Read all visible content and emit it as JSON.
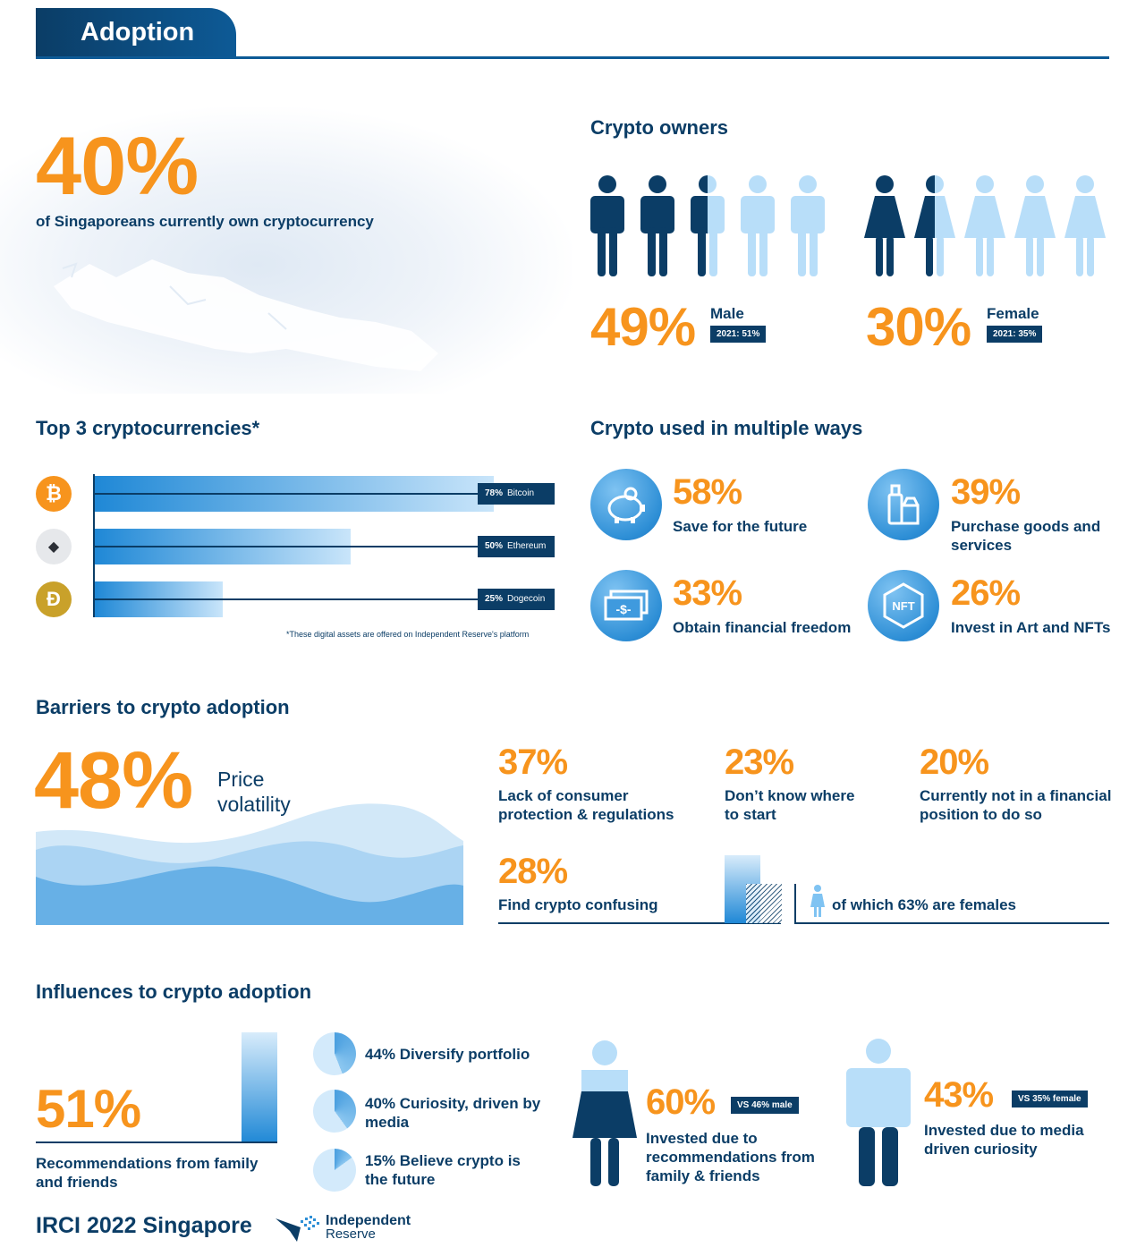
{
  "header": {
    "title": "Adoption"
  },
  "colors": {
    "navy": "#0b3d66",
    "orange": "#f7941d",
    "light_blue": "#b8def9",
    "blue": "#2e8fd6"
  },
  "ownership": {
    "percent": "40%",
    "description": "of Singaporeans currently own cryptocurrency"
  },
  "crypto_owners": {
    "title": "Crypto owners",
    "male": {
      "percent": "49%",
      "label": "Male",
      "tag": "2021: 51%",
      "filled_fraction": 0.49
    },
    "female": {
      "percent": "30%",
      "label": "Female",
      "tag": "2021: 35%",
      "filled_fraction": 0.3
    }
  },
  "top_crypto": {
    "title": "Top 3 cryptocurrencies*",
    "footnote": "*These digital assets are offered on Independent Reserve's platform",
    "items": [
      {
        "pct": "78%",
        "name": "Bitcoin",
        "value": 78,
        "icon": "bitcoin-icon",
        "symbol": "₿"
      },
      {
        "pct": "50%",
        "name": "Ethereum",
        "value": 50,
        "icon": "ethereum-icon",
        "symbol": "◆"
      },
      {
        "pct": "25%",
        "name": "Dogecoin",
        "value": 25,
        "icon": "dogecoin-icon",
        "symbol": "Ð"
      }
    ]
  },
  "uses": {
    "title": "Crypto used in multiple ways",
    "items": [
      {
        "pct": "58%",
        "label": "Save for the future",
        "icon": "piggy-bank-icon"
      },
      {
        "pct": "39%",
        "label": "Purchase goods and services",
        "icon": "shopping-bottles-icon"
      },
      {
        "pct": "33%",
        "label": "Obtain financial freedom",
        "icon": "cash-icon"
      },
      {
        "pct": "26%",
        "label": "Invest in Art and NFTs",
        "icon": "nft-icon",
        "icon_text": "NFT"
      }
    ]
  },
  "barriers": {
    "title": "Barriers to crypto adoption",
    "main": {
      "pct": "48%",
      "label": "Price volatility"
    },
    "items": [
      {
        "pct": "37%",
        "label": "Lack of consumer protection & regulations"
      },
      {
        "pct": "23%",
        "label": "Don’t know where to start"
      },
      {
        "pct": "20%",
        "label": "Currently not in a financial position to do so"
      },
      {
        "pct": "28%",
        "label": "Find crypto confusing"
      }
    ],
    "female_note": "of which 63% are females"
  },
  "influences": {
    "title": "Influences to crypto adoption",
    "main": {
      "pct": "51%",
      "label": "Recommendations from family and friends"
    },
    "reasons": [
      {
        "text": "44% Diversify portfolio",
        "value": 44
      },
      {
        "text": "40% Curiosity, driven by media",
        "value": 40
      },
      {
        "text": "15% Believe crypto is the future",
        "value": 15
      }
    ],
    "female": {
      "pct": "60%",
      "tag": "VS 46% male",
      "label": "Invested due to recommendations from family & friends"
    },
    "male": {
      "pct": "43%",
      "tag": "VS 35% female",
      "label": "Invested due to media driven curiosity"
    }
  },
  "footer": {
    "title": "IRCI 2022 Singapore",
    "brand_line1": "Independent",
    "brand_line2": "Reserve"
  }
}
